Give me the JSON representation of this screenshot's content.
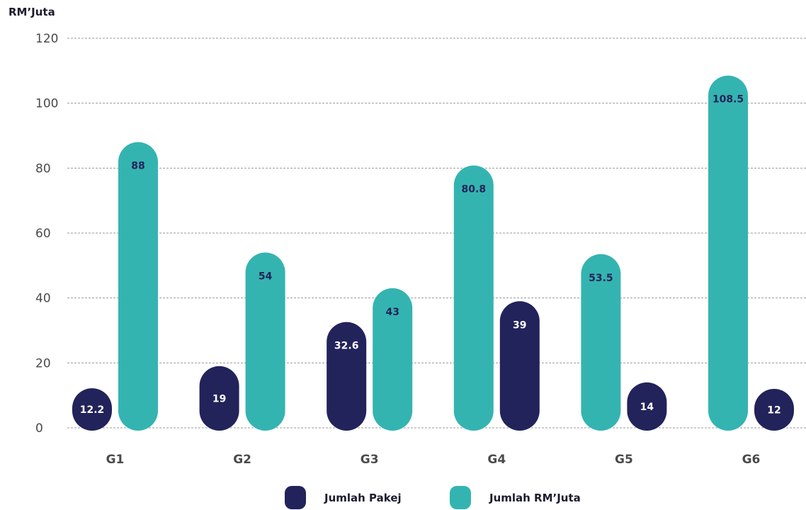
{
  "chart_data": {
    "type": "bar",
    "ylabel": "RM’Juta",
    "ylim": [
      0,
      120
    ],
    "yticks": [
      0,
      20,
      40,
      60,
      80,
      100,
      120
    ],
    "grid": true,
    "categories": [
      "G1",
      "G2",
      "G3",
      "G4",
      "G5",
      "G6"
    ],
    "series": [
      {
        "name": "Jumlah Pakej",
        "color": "#22235a",
        "label_color": "#ffffff",
        "values": [
          12.2,
          19,
          32.6,
          39,
          14,
          12
        ]
      },
      {
        "name": "Jumlah RM’Juta",
        "color": "#34b4b0",
        "label_color": "#22235a",
        "values": [
          88,
          54,
          43,
          80.8,
          53.5,
          108.5
        ]
      }
    ],
    "bar_order": [
      [
        "Jumlah Pakej",
        "Jumlah RM’Juta"
      ],
      [
        "Jumlah Pakej",
        "Jumlah RM’Juta"
      ],
      [
        "Jumlah Pakej",
        "Jumlah RM’Juta"
      ],
      [
        "Jumlah RM’Juta",
        "Jumlah Pakej"
      ],
      [
        "Jumlah RM’Juta",
        "Jumlah Pakej"
      ],
      [
        "Jumlah RM’Juta",
        "Jumlah Pakej"
      ]
    ],
    "legend_position": "bottom-center"
  }
}
